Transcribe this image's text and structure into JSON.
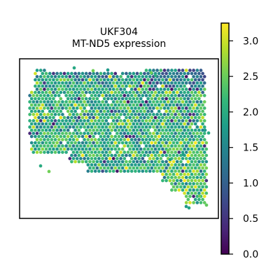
{
  "chart_data": {
    "type": "scatter",
    "subtype": "spatial-transcriptomics-spot-map",
    "title_line1": "UKF304",
    "title_line2": "MT-ND5 expression",
    "xlabel": "",
    "ylabel": "",
    "x_ticks_visible": false,
    "y_ticks_visible": false,
    "grid": false,
    "colormap": "viridis",
    "colorbar": {
      "location": "right",
      "range": [
        0.0,
        3.25
      ],
      "tick_values": [
        0.0,
        0.5,
        1.0,
        1.5,
        2.0,
        2.5,
        3.0
      ],
      "tick_labels": [
        "0.0",
        "0.5",
        "1.0",
        "1.5",
        "2.0",
        "2.5",
        "3.0"
      ]
    },
    "typical_value_range": [
      1.5,
      2.5
    ],
    "low_value_region": "top band of the tissue",
    "viridis_stops": [
      "#440154",
      "#482878",
      "#3e4989",
      "#31688e",
      "#26828e",
      "#1f9e89",
      "#35b779",
      "#6ece58",
      "#b5de2b",
      "#fde725"
    ]
  }
}
